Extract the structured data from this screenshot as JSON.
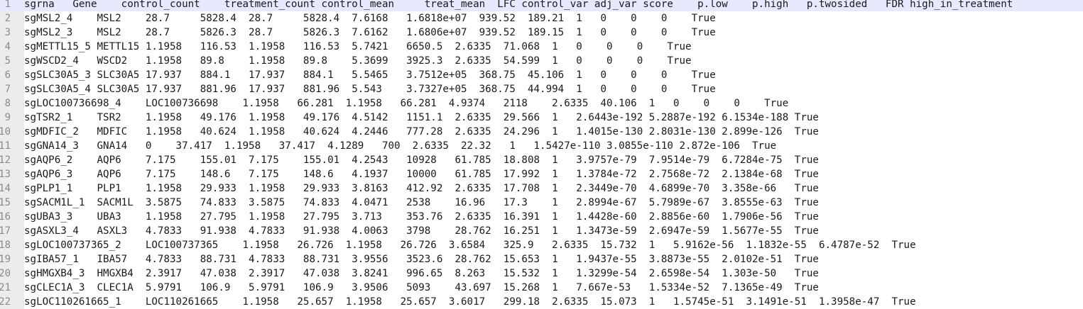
{
  "editor": {
    "lines": [
      {
        "number": "1",
        "text": "sgrna   Gene    control_count    treatment_count control_mean     treat_mean  LFC control_var adj_var score    p.low    p.high   p.twosided   FDR high_in_treatment"
      },
      {
        "number": "2",
        "text": "sgMSL2_4    MSL2    28.7     5828.4  28.7     5828.4  7.6168   1.6818e+07  939.52  189.21  1   0    0    0    True"
      },
      {
        "number": "3",
        "text": "sgMSL2_3    MSL2    28.7     5826.3  28.7     5826.3  7.6162   1.6806e+07  939.52  189.15  1   0    0    0    True"
      },
      {
        "number": "4",
        "text": "sgMETTL15_5 METTL15 1.1958   116.53  1.1958   116.53  5.7421   6650.5  2.6335  71.068  1   0    0    0    True"
      },
      {
        "number": "5",
        "text": "sgWSCD2_4   WSCD2   1.1958   89.8    1.1958   89.8    5.3699   3925.3  2.6335  54.599  1   0    0    0    True"
      },
      {
        "number": "6",
        "text": "sgSLC30A5_3 SLC30A5 17.937   884.1   17.937   884.1   5.5465   3.7512e+05  368.75  45.106  1   0    0    0    True"
      },
      {
        "number": "7",
        "text": "sgSLC30A5_4 SLC30A5 17.937   881.96  17.937   881.96  5.543    3.7327e+05  368.75  44.994  1   0    0    0    True"
      },
      {
        "number": "8",
        "text": "sgLOC100736698_4    LOC100736698    1.1958   66.281  1.1958   66.281  4.9374   2118    2.6335  40.106  1   0    0    0    True"
      },
      {
        "number": "9",
        "text": "sgTSR2_1    TSR2    1.1958   49.176  1.1958   49.176  4.5142   1151.1  2.6335  29.566  1   2.6443e-192 5.2887e-192 6.1534e-188 True"
      },
      {
        "number": "10",
        "text": "sgMDFIC_2   MDFIC   1.1958   40.624  1.1958   40.624  4.2446   777.28  2.6335  24.296  1   1.4015e-130 2.8031e-130 2.899e-126  True"
      },
      {
        "number": "11",
        "text": "sgGNA14_3   GNA14   0    37.417  1.1958   37.417  4.1289   700  2.6335  22.32   1   1.5427e-110 3.0855e-110 2.872e-106  True"
      },
      {
        "number": "12",
        "text": "sgAQP6_2    AQP6    7.175    155.01  7.175    155.01  4.2543   10928   61.785  18.808  1   3.9757e-79  7.9514e-79  6.7284e-75  True"
      },
      {
        "number": "13",
        "text": "sgAQP6_3    AQP6    7.175    148.6   7.175    148.6   4.1937   10000   61.785  17.992  1   1.3784e-72  2.7568e-72  2.1384e-68  True"
      },
      {
        "number": "14",
        "text": "sgPLP1_1    PLP1    1.1958   29.933  1.1958   29.933  3.8163   412.92  2.6335  17.708  1   2.3449e-70  4.6899e-70  3.358e-66   True"
      },
      {
        "number": "15",
        "text": "sgSACM1L_1  SACM1L  3.5875   74.833  3.5875   74.833  4.0471   2538    16.96   17.3    1   2.8994e-67  5.7989e-67  3.8555e-63  True"
      },
      {
        "number": "16",
        "text": "sgUBA3_3    UBA3    1.1958   27.795  1.1958   27.795  3.713    353.76  2.6335  16.391  1   1.4428e-60  2.8856e-60  1.7906e-56  True"
      },
      {
        "number": "17",
        "text": "sgASXL3_4   ASXL3   4.7833   91.938  4.7833   91.938  4.0063   3798    28.762  16.251  1   1.3473e-59  2.6947e-59  1.5677e-55  True"
      },
      {
        "number": "18",
        "text": "sgLOC100737365_2    LOC100737365    1.1958   26.726  1.1958   26.726  3.6584   325.9   2.6335  15.732  1   5.9162e-56  1.1832e-55  6.4787e-52  True"
      },
      {
        "number": "19",
        "text": "sgIBA57_1   IBA57   4.7833   88.731  4.7833   88.731  3.9556   3523.6  28.762  15.653  1   1.9437e-55  3.8873e-55  2.0102e-51  True"
      },
      {
        "number": "20",
        "text": "sgHMGXB4_3  HMGXB4  2.3917   47.038  2.3917   47.038  3.8241   996.65  8.263   15.532  1   1.3299e-54  2.6598e-54  1.303e-50   True"
      },
      {
        "number": "21",
        "text": "sgCLEC1A_3  CLEC1A  5.9791   106.9   5.9791   106.9   3.9506   5093    43.697  15.268  1   7.667e-53   1.5334e-52  7.1365e-49  True"
      },
      {
        "number": "22",
        "text": "sgLOC110261665_1    LOC110261665    1.1958   25.657  1.1958   25.657  3.6017   299.18  2.6335  15.073  1   1.5745e-51  3.1491e-51  1.3958e-47  True"
      }
    ]
  }
}
